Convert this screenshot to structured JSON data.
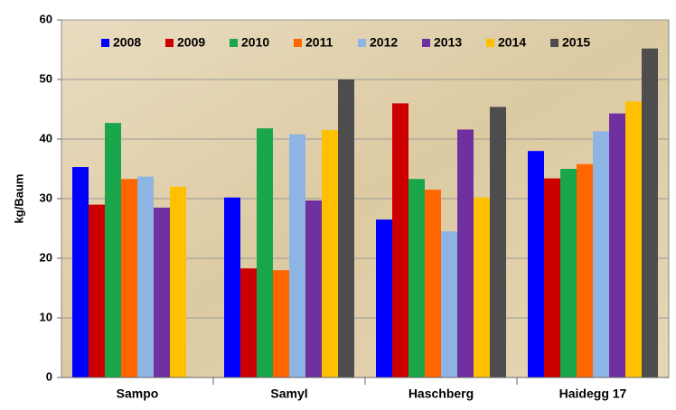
{
  "chart_data": {
    "type": "bar",
    "y_label": "kg/Baum",
    "categories": [
      "Sampo",
      "Samyl",
      "Haschberg",
      "Haidegg 17"
    ],
    "series": [
      {
        "name": "2008",
        "color": "#0000ff",
        "values": [
          35.3,
          30.2,
          26.5,
          38
        ]
      },
      {
        "name": "2009",
        "color": "#cc0000",
        "values": [
          29,
          18.3,
          46,
          33.4
        ]
      },
      {
        "name": "2010",
        "color": "#1aa64a",
        "values": [
          42.7,
          41.8,
          33.3,
          35
        ]
      },
      {
        "name": "2011",
        "color": "#ff6600",
        "values": [
          33.3,
          18,
          31.5,
          35.8
        ]
      },
      {
        "name": "2012",
        "color": "#8db4e2",
        "values": [
          33.7,
          40.8,
          24.5,
          41.3
        ]
      },
      {
        "name": "2013",
        "color": "#7030a0",
        "values": [
          28.5,
          29.7,
          41.6,
          44.3
        ]
      },
      {
        "name": "2014",
        "color": "#ffc000",
        "values": [
          32,
          41.5,
          30.2,
          46.3
        ]
      },
      {
        "name": "2015",
        "color": "#4d4d4d",
        "values": [
          null,
          50,
          45.4,
          55.2
        ]
      }
    ],
    "ylim": [
      0,
      60
    ],
    "yticks": [
      0,
      10,
      20,
      30,
      40,
      50,
      60
    ],
    "grid": true
  }
}
